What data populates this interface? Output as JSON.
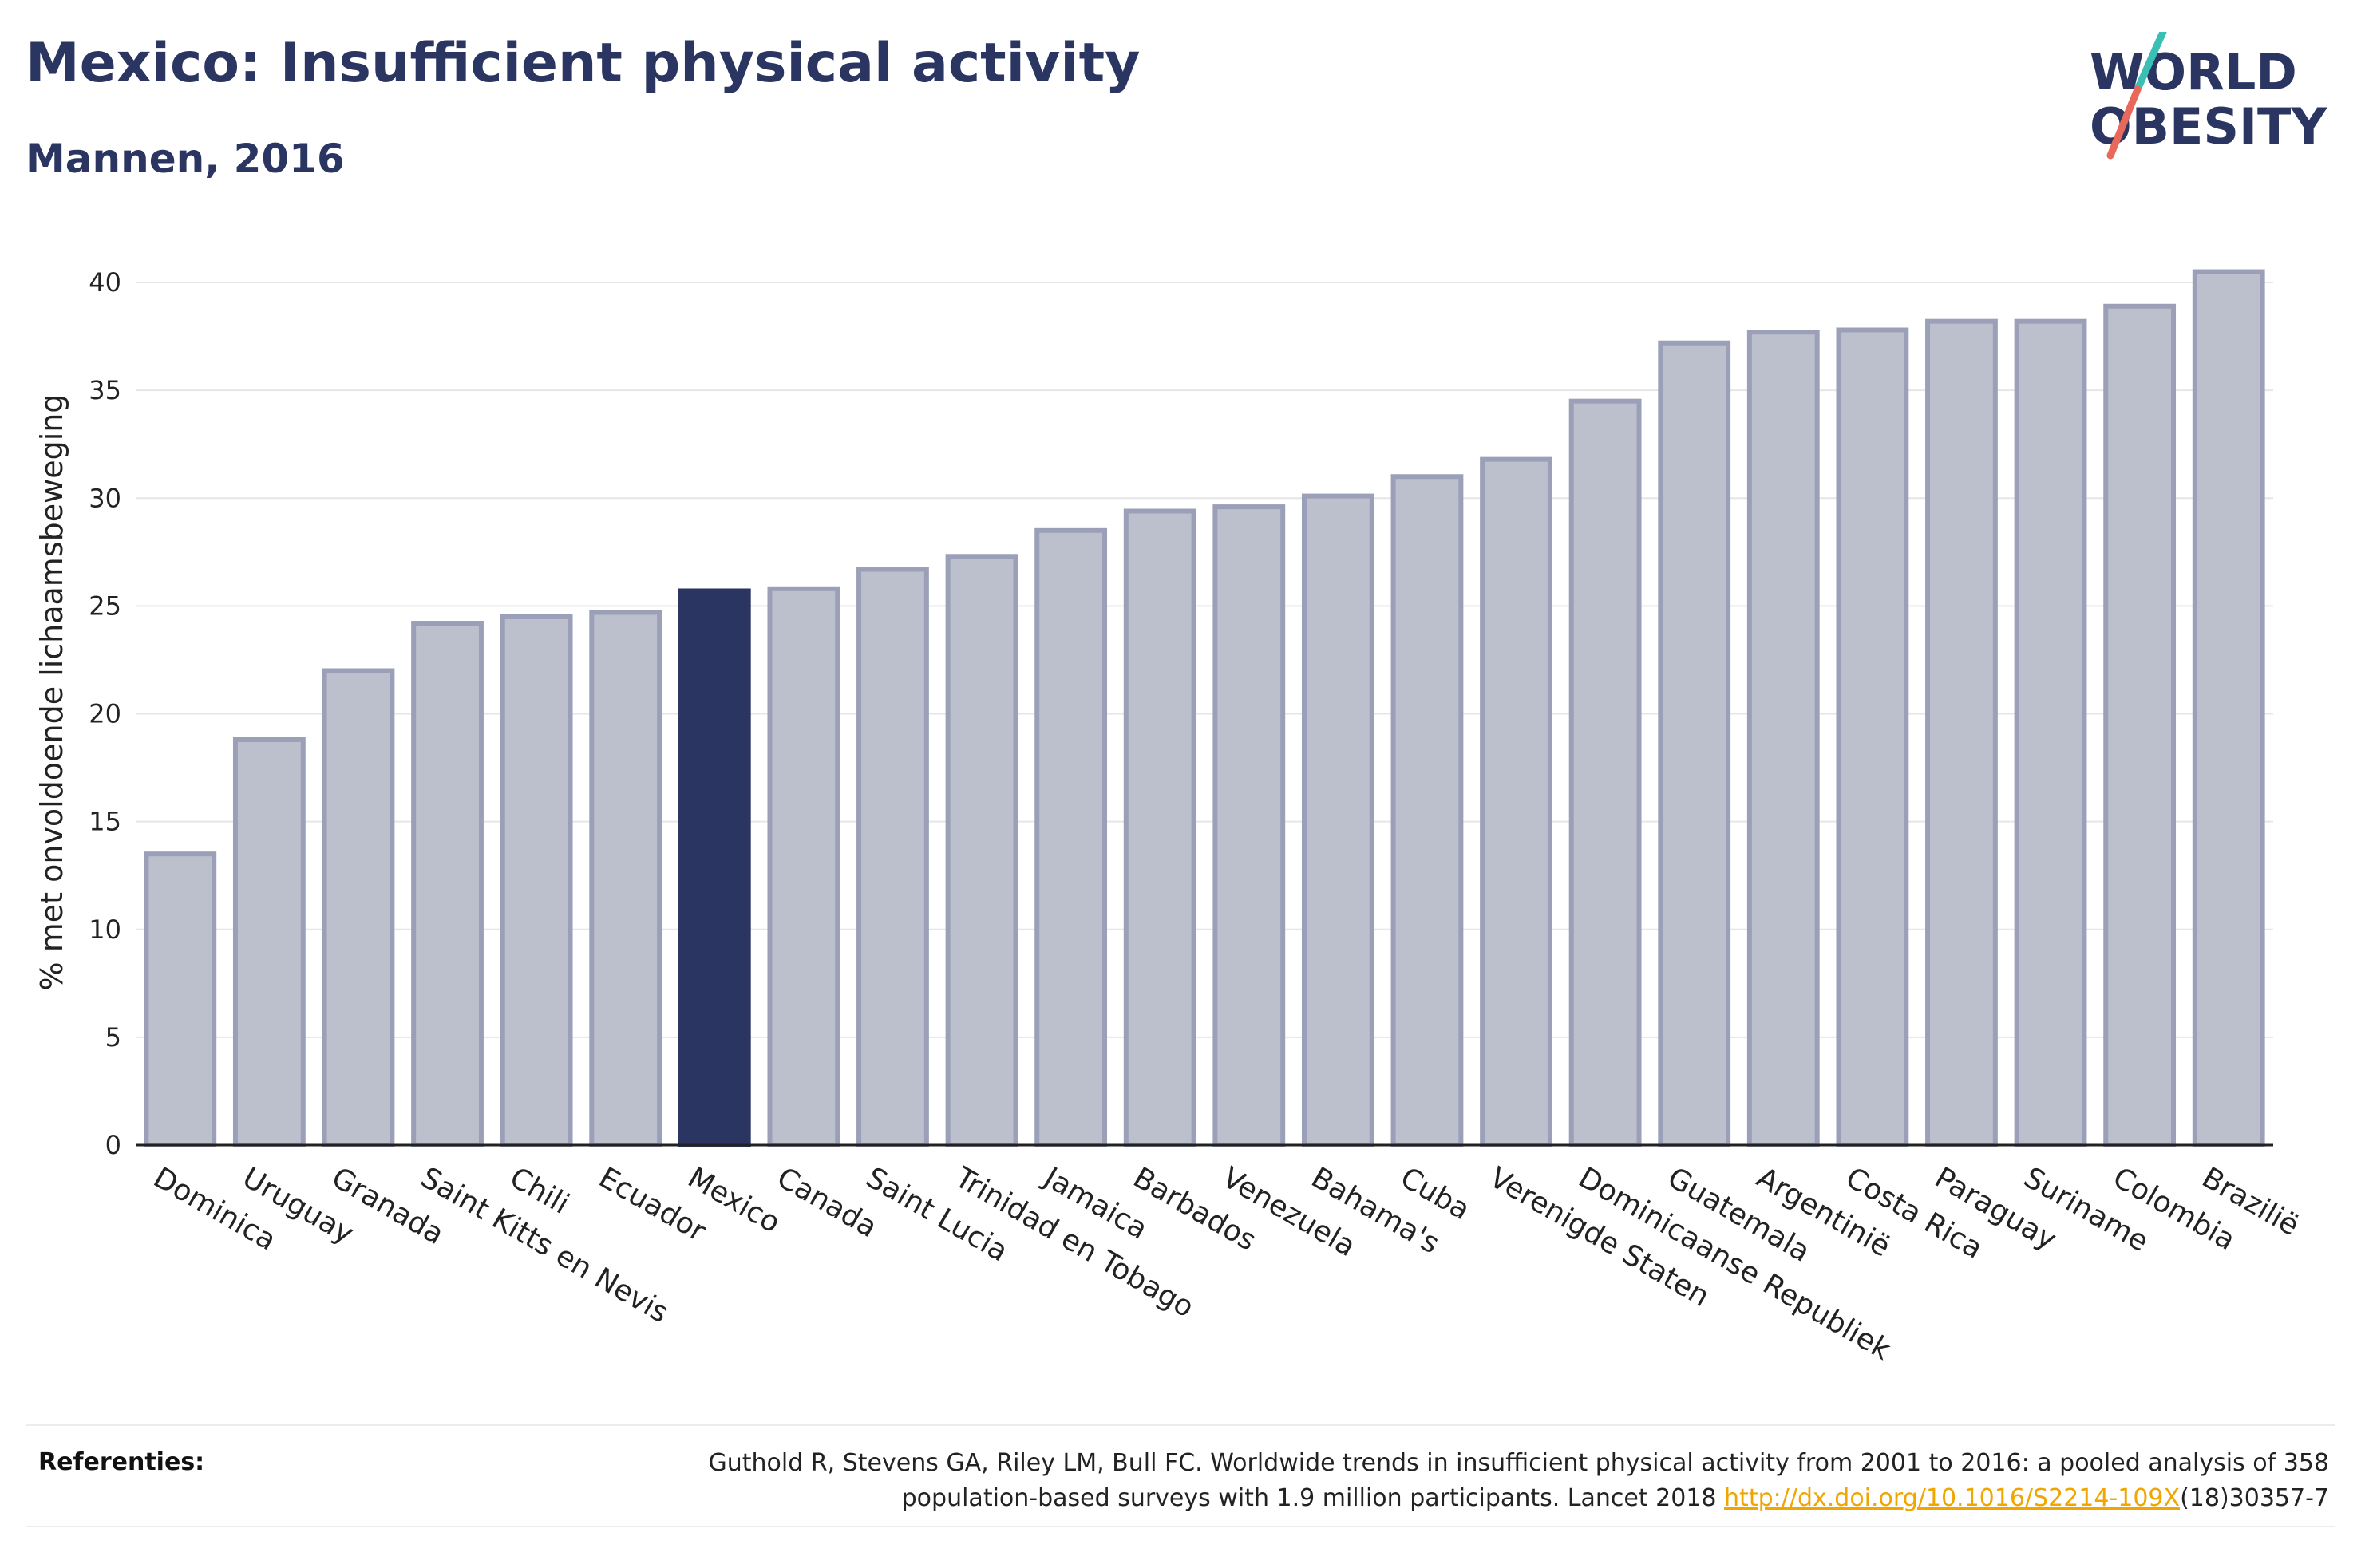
{
  "header": {
    "title": "Mexico: Insufficient physical activity",
    "subtitle": "Mannen, 2016"
  },
  "logo": {
    "line1": "WORLD",
    "line2": "OBESITY",
    "accent_teal": "#3bbfb5",
    "accent_coral": "#e8685a"
  },
  "colors": {
    "bar": "#bcbfcc",
    "bar_border": "#9ba0b8",
    "highlight": "#2b3561",
    "text": "#2b3561"
  },
  "chart_data": {
    "type": "bar",
    "ylabel": "% met onvoldoende lichaamsbeweging",
    "ylim": [
      0,
      42
    ],
    "yticks": [
      0,
      5,
      10,
      15,
      20,
      25,
      30,
      35,
      40
    ],
    "grid": true,
    "highlight": "Mexico",
    "categories": [
      "Dominica",
      "Uruguay",
      "Granada",
      "Saint Kitts en Nevis",
      "Chili",
      "Ecuador",
      "Mexico",
      "Canada",
      "Saint Lucia",
      "Trinidad en Tobago",
      "Jamaica",
      "Barbados",
      "Venezuela",
      "Bahama's",
      "Cuba",
      "Verenigde Staten",
      "Dominicaanse Republiek",
      "Guatemala",
      "Argentinië",
      "Costa Rica",
      "Paraguay",
      "Suriname",
      "Colombia",
      "Brazilië"
    ],
    "values": [
      13.5,
      18.8,
      22.0,
      24.2,
      24.5,
      24.7,
      25.7,
      25.8,
      26.7,
      27.3,
      28.5,
      29.4,
      29.6,
      30.1,
      31.0,
      31.8,
      34.5,
      37.2,
      37.7,
      37.8,
      38.2,
      38.2,
      38.9,
      40.5
    ]
  },
  "references": {
    "label": "Referenties:",
    "text_line1": "Guthold R, Stevens GA, Riley LM, Bull FC. Worldwide trends in insufficient physical activity from 2001 to 2016: a pooled analysis of 358",
    "text_line2_pre": "population-based surveys with 1.9 million participants. Lancet 2018 ",
    "link": "http://dx.doi.org/10.1016/S2214-109X",
    "text_line2_post": "(18)30357-7"
  }
}
